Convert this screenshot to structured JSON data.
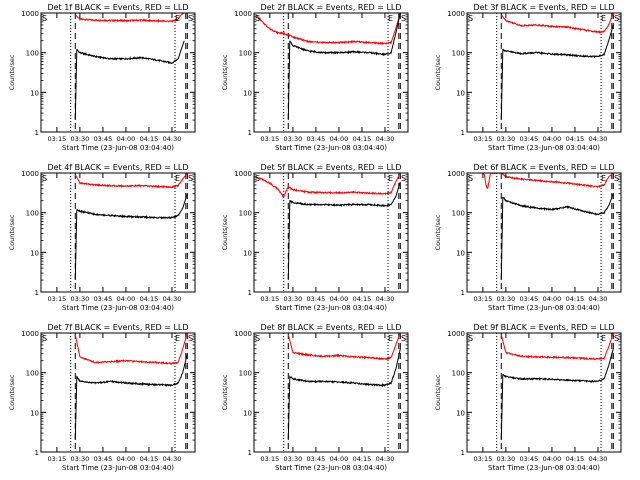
{
  "colors": {
    "events": "#000000",
    "lld": "#ff0000",
    "axis": "#000000",
    "background": "#ffffff"
  },
  "chart_data": [
    {
      "type": "line",
      "title": "Det 1f BLACK = Events, RED = LLD",
      "xlabel": "Start Time (23-Jun-08 03:04:40)",
      "ylabel": "Counts/sec",
      "yscale": "log",
      "ylim": [
        1,
        1000
      ],
      "yticks": [
        "1",
        "10",
        "100",
        "1000"
      ],
      "xticks": [
        "03:15",
        "03:30",
        "03:45",
        "04:00",
        "04:15",
        "04:30"
      ],
      "xlim": [
        "03:04:40",
        "04:45:00"
      ],
      "markers": [
        {
          "label": "S",
          "t": "03:04:40"
        },
        {
          "label": "E",
          "t": "04:32"
        },
        {
          "label": "S",
          "t": "04:43"
        }
      ],
      "dotted_lines": [
        "03:24",
        "04:32"
      ],
      "dashed_lines": [
        "03:27",
        "04:39",
        "04:40"
      ],
      "series": [
        {
          "x": [
            "03:27",
            "03:30",
            "03:40",
            "03:50",
            "04:00",
            "04:10",
            "04:20",
            "04:30",
            "04:34",
            "04:36",
            "04:38"
          ],
          "y": [
            900,
            700,
            660,
            650,
            640,
            660,
            630,
            620,
            700,
            900,
            1000
          ]
        },
        {
          "x": [
            "03:27",
            "03:28",
            "03:30",
            "03:40",
            "03:50",
            "04:00",
            "04:10",
            "04:20",
            "04:30",
            "04:34",
            "04:36",
            "04:38"
          ],
          "y": [
            2,
            120,
            100,
            80,
            70,
            70,
            75,
            65,
            55,
            70,
            120,
            200
          ]
        }
      ]
    },
    {
      "type": "line",
      "title": "Det 2f BLACK = Events, RED = LLD",
      "xlabel": "Start Time (23-Jun-08 03:04:40)",
      "ylabel": "Counts/sec",
      "yscale": "log",
      "ylim": [
        1,
        1000
      ],
      "yticks": [
        "1",
        "10",
        "100",
        "1000"
      ],
      "xticks": [
        "03:15",
        "03:30",
        "03:45",
        "04:00",
        "04:15",
        "04:30"
      ],
      "xlim": [
        "03:04:40",
        "04:45:00"
      ],
      "markers": [
        {
          "label": "S",
          "t": "03:04:40"
        },
        {
          "label": "E",
          "t": "04:32"
        },
        {
          "label": "S",
          "t": "04:43"
        }
      ],
      "dotted_lines": [
        "03:24",
        "04:32"
      ],
      "dashed_lines": [
        "03:27",
        "04:39",
        "04:40"
      ],
      "series": [
        {
          "x": [
            "03:06",
            "03:10",
            "03:15",
            "03:20",
            "03:25",
            "03:30",
            "03:40",
            "03:50",
            "04:00",
            "04:10",
            "04:20",
            "04:30",
            "04:34",
            "04:37",
            "04:40"
          ],
          "y": [
            900,
            600,
            400,
            320,
            300,
            250,
            190,
            180,
            180,
            190,
            180,
            170,
            180,
            400,
            1000
          ]
        },
        {
          "x": [
            "03:27",
            "03:28",
            "03:30",
            "03:40",
            "03:50",
            "04:00",
            "04:10",
            "04:20",
            "04:30",
            "04:34",
            "04:37",
            "04:40"
          ],
          "y": [
            2,
            200,
            150,
            110,
            100,
            100,
            105,
            100,
            90,
            100,
            300,
            1000
          ]
        }
      ]
    },
    {
      "type": "line",
      "title": "Det 3f BLACK = Events, RED = LLD",
      "xlabel": "Start Time (23-Jun-08 03:04:40)",
      "ylabel": "Counts/sec",
      "yscale": "log",
      "ylim": [
        1,
        1000
      ],
      "yticks": [
        "1",
        "10",
        "100",
        "1000"
      ],
      "xticks": [
        "03:15",
        "03:30",
        "03:45",
        "04:00",
        "04:15",
        "04:30"
      ],
      "xlim": [
        "03:04:40",
        "04:45:00"
      ],
      "markers": [
        {
          "label": "S",
          "t": "03:04:40"
        },
        {
          "label": "E",
          "t": "04:32"
        },
        {
          "label": "S",
          "t": "04:43"
        }
      ],
      "dotted_lines": [
        "03:24",
        "04:32"
      ],
      "dashed_lines": [
        "03:27",
        "04:39",
        "04:40"
      ],
      "series": [
        {
          "x": [
            "03:27",
            "03:30",
            "03:40",
            "03:50",
            "04:00",
            "04:10",
            "04:20",
            "04:30",
            "04:34",
            "04:37",
            "04:40"
          ],
          "y": [
            900,
            650,
            480,
            500,
            460,
            440,
            380,
            330,
            340,
            500,
            1000
          ]
        },
        {
          "x": [
            "03:27",
            "03:28",
            "03:30",
            "03:40",
            "03:50",
            "04:00",
            "04:10",
            "04:20",
            "04:30",
            "04:34",
            "04:37",
            "04:40"
          ],
          "y": [
            2,
            120,
            110,
            95,
            100,
            92,
            88,
            82,
            80,
            90,
            200,
            500
          ]
        }
      ]
    },
    {
      "type": "line",
      "title": "Det 4f BLACK = Events, RED = LLD",
      "xlabel": "Start Time (23-Jun-08 03:04:40)",
      "ylabel": "Counts/sec",
      "yscale": "log",
      "ylim": [
        1,
        1000
      ],
      "yticks": [
        "1",
        "10",
        "100",
        "1000"
      ],
      "xticks": [
        "03:15",
        "03:30",
        "03:45",
        "04:00",
        "04:15",
        "04:30"
      ],
      "xlim": [
        "03:04:40",
        "04:45:00"
      ],
      "markers": [
        {
          "label": "S",
          "t": "03:04:40"
        },
        {
          "label": "E",
          "t": "04:32"
        },
        {
          "label": "S",
          "t": "04:43"
        }
      ],
      "dotted_lines": [
        "03:24",
        "04:32"
      ],
      "dashed_lines": [
        "03:27",
        "04:39",
        "04:40"
      ],
      "series": [
        {
          "x": [
            "03:27",
            "03:30",
            "03:40",
            "03:50",
            "04:00",
            "04:10",
            "04:20",
            "04:30",
            "04:34",
            "04:37",
            "04:40"
          ],
          "y": [
            900,
            560,
            500,
            480,
            470,
            480,
            460,
            440,
            480,
            700,
            1000
          ]
        },
        {
          "x": [
            "03:27",
            "03:28",
            "03:30",
            "03:40",
            "03:50",
            "04:00",
            "04:10",
            "04:20",
            "04:30",
            "04:34",
            "04:37",
            "04:40"
          ],
          "y": [
            2,
            120,
            110,
            90,
            85,
            80,
            78,
            75,
            75,
            85,
            130,
            300
          ]
        }
      ]
    },
    {
      "type": "line",
      "title": "Det 5f BLACK = Events, RED = LLD",
      "xlabel": "Start Time (23-Jun-08 03:04:40)",
      "ylabel": "Counts/sec",
      "yscale": "log",
      "ylim": [
        1,
        1000
      ],
      "yticks": [
        "1",
        "10",
        "100",
        "1000"
      ],
      "xticks": [
        "03:15",
        "03:30",
        "03:45",
        "04:00",
        "04:15",
        "04:30"
      ],
      "xlim": [
        "03:04:40",
        "04:45:00"
      ],
      "markers": [
        {
          "label": "S",
          "t": "03:04:40"
        },
        {
          "label": "E",
          "t": "04:32"
        },
        {
          "label": "S",
          "t": "04:43"
        }
      ],
      "dotted_lines": [
        "03:24",
        "04:32"
      ],
      "dashed_lines": [
        "03:27",
        "04:39",
        "04:40"
      ],
      "series": [
        {
          "x": [
            "03:05",
            "03:10",
            "03:15",
            "03:20",
            "03:24",
            "03:27",
            "03:30",
            "03:40",
            "03:50",
            "04:00",
            "04:10",
            "04:20",
            "04:30",
            "04:34",
            "04:37",
            "04:40"
          ],
          "y": [
            800,
            700,
            550,
            400,
            250,
            450,
            380,
            330,
            320,
            320,
            330,
            310,
            300,
            320,
            600,
            1000
          ]
        },
        {
          "x": [
            "03:27",
            "03:28",
            "03:30",
            "03:40",
            "03:50",
            "04:00",
            "04:10",
            "04:20",
            "04:30",
            "04:34",
            "04:37",
            "04:40"
          ],
          "y": [
            2,
            200,
            180,
            160,
            160,
            155,
            160,
            160,
            150,
            160,
            250,
            600
          ]
        }
      ]
    },
    {
      "type": "line",
      "title": "Det 6f BLACK = Events, RED = LLD",
      "xlabel": "Start Time (23-Jun-08 03:04:40)",
      "ylabel": "Counts/sec",
      "yscale": "log",
      "ylim": [
        1,
        1000
      ],
      "yticks": [
        "1",
        "10",
        "100",
        "1000"
      ],
      "xticks": [
        "03:15",
        "03:30",
        "03:45",
        "04:00",
        "04:15",
        "04:30"
      ],
      "xlim": [
        "03:04:40",
        "04:45:00"
      ],
      "markers": [
        {
          "label": "S",
          "t": "03:04:40"
        },
        {
          "label": "E",
          "t": "04:32"
        },
        {
          "label": "S",
          "t": "04:43"
        }
      ],
      "dotted_lines": [
        "03:24",
        "04:32"
      ],
      "dashed_lines": [
        "03:27",
        "04:39",
        "04:40"
      ],
      "series": [
        {
          "x": [
            "03:15",
            "03:16",
            "03:17",
            "03:18",
            "03:19",
            "03:20",
            "03:27",
            "03:30",
            "03:40",
            "03:50",
            "04:00",
            "04:10",
            "04:20",
            "04:30",
            "04:34",
            "04:37",
            "04:40"
          ],
          "y": [
            1000,
            900,
            500,
            400,
            600,
            1000,
            1000,
            800,
            700,
            650,
            600,
            560,
            500,
            450,
            500,
            800,
            1000
          ]
        },
        {
          "x": [
            "03:27",
            "03:28",
            "03:30",
            "03:40",
            "03:50",
            "04:00",
            "04:10",
            "04:20",
            "04:30",
            "04:34",
            "04:37",
            "04:40"
          ],
          "y": [
            2,
            250,
            200,
            150,
            130,
            120,
            140,
            110,
            90,
            100,
            150,
            300
          ]
        }
      ]
    },
    {
      "type": "line",
      "title": "Det 7f BLACK = Events, RED = LLD",
      "xlabel": "Start Time (23-Jun-08 03:04:40)",
      "ylabel": "Counts/sec",
      "yscale": "log",
      "ylim": [
        1,
        1000
      ],
      "yticks": [
        "1",
        "10",
        "100",
        "1000"
      ],
      "xticks": [
        "03:15",
        "03:30",
        "03:45",
        "04:00",
        "04:15",
        "04:30"
      ],
      "xlim": [
        "03:04:40",
        "04:45:00"
      ],
      "markers": [
        {
          "label": "S",
          "t": "03:04:40"
        },
        {
          "label": "E",
          "t": "04:32"
        },
        {
          "label": "S",
          "t": "04:43"
        }
      ],
      "dotted_lines": [
        "03:24",
        "04:32"
      ],
      "dashed_lines": [
        "03:27",
        "04:39",
        "04:40"
      ],
      "series": [
        {
          "x": [
            "03:27",
            "03:30",
            "03:40",
            "03:50",
            "04:00",
            "04:10",
            "04:20",
            "04:30",
            "04:34",
            "04:37",
            "04:40"
          ],
          "y": [
            900,
            250,
            180,
            190,
            200,
            190,
            180,
            170,
            180,
            400,
            1000
          ]
        },
        {
          "x": [
            "03:27",
            "03:28",
            "03:30",
            "03:40",
            "03:50",
            "04:00",
            "04:10",
            "04:20",
            "04:30",
            "04:34",
            "04:37",
            "04:40"
          ],
          "y": [
            2,
            80,
            60,
            55,
            60,
            55,
            52,
            50,
            48,
            55,
            100,
            300
          ]
        }
      ]
    },
    {
      "type": "line",
      "title": "Det 8f BLACK = Events, RED = LLD",
      "xlabel": "Start Time (23-Jun-08 03:04:40)",
      "ylabel": "Counts/sec",
      "yscale": "log",
      "ylim": [
        1,
        1000
      ],
      "yticks": [
        "1",
        "10",
        "100",
        "1000"
      ],
      "xticks": [
        "03:15",
        "03:30",
        "03:45",
        "04:00",
        "04:15",
        "04:30"
      ],
      "xlim": [
        "03:04:40",
        "04:45:00"
      ],
      "markers": [
        {
          "label": "S",
          "t": "03:04:40"
        },
        {
          "label": "E",
          "t": "04:32"
        },
        {
          "label": "S",
          "t": "04:43"
        }
      ],
      "dotted_lines": [
        "03:24",
        "04:32"
      ],
      "dashed_lines": [
        "03:27",
        "04:39",
        "04:40"
      ],
      "series": [
        {
          "x": [
            "03:27",
            "03:30",
            "03:40",
            "03:50",
            "04:00",
            "04:10",
            "04:20",
            "04:30",
            "04:34",
            "04:37",
            "04:40"
          ],
          "y": [
            900,
            320,
            280,
            260,
            270,
            250,
            240,
            220,
            240,
            500,
            1000
          ]
        },
        {
          "x": [
            "03:27",
            "03:28",
            "03:30",
            "03:40",
            "03:50",
            "04:00",
            "04:10",
            "04:20",
            "04:30",
            "04:34",
            "04:37",
            "04:40"
          ],
          "y": [
            2,
            80,
            70,
            60,
            60,
            58,
            55,
            50,
            48,
            55,
            120,
            400
          ]
        }
      ]
    },
    {
      "type": "line",
      "title": "Det 9f BLACK = Events, RED = LLD",
      "xlabel": "Start Time (23-Jun-08 03:04:40)",
      "ylabel": "Counts/sec",
      "yscale": "log",
      "ylim": [
        1,
        1000
      ],
      "yticks": [
        "1",
        "10",
        "100",
        "1000"
      ],
      "xticks": [
        "03:15",
        "03:30",
        "03:45",
        "04:00",
        "04:15",
        "04:30"
      ],
      "xlim": [
        "03:04:40",
        "04:45:00"
      ],
      "markers": [
        {
          "label": "S",
          "t": "03:04:40"
        },
        {
          "label": "E",
          "t": "04:32"
        },
        {
          "label": "S",
          "t": "04:43"
        }
      ],
      "dotted_lines": [
        "03:24",
        "04:32"
      ],
      "dashed_lines": [
        "03:27",
        "04:39",
        "04:40"
      ],
      "series": [
        {
          "x": [
            "03:27",
            "03:30",
            "03:40",
            "03:50",
            "04:00",
            "04:10",
            "04:20",
            "04:30",
            "04:34",
            "04:37",
            "04:40"
          ],
          "y": [
            900,
            320,
            260,
            250,
            245,
            240,
            230,
            220,
            230,
            450,
            1000
          ]
        },
        {
          "x": [
            "03:27",
            "03:28",
            "03:30",
            "03:40",
            "03:50",
            "04:00",
            "04:10",
            "04:20",
            "04:30",
            "04:34",
            "04:37",
            "04:40"
          ],
          "y": [
            2,
            90,
            80,
            70,
            70,
            68,
            65,
            62,
            60,
            70,
            150,
            400
          ]
        }
      ]
    }
  ]
}
